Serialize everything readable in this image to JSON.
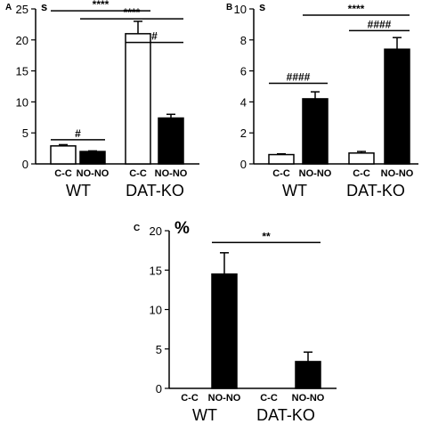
{
  "colors": {
    "control": "#ffffff",
    "treated": "#000000",
    "ink": "#000000"
  },
  "chart_data": [
    {
      "type": "bar",
      "panel_label": "A",
      "ylabel": "s",
      "ylim": [
        0,
        25
      ],
      "yticks": [
        0,
        5,
        10,
        15,
        20,
        25
      ],
      "categories": [
        "C-C",
        "NO-NO",
        "C-C",
        "NO-NO"
      ],
      "groups": [
        "WT",
        "DAT-KO"
      ],
      "values": [
        2.9,
        2.0,
        21.0,
        7.4
      ],
      "errors": [
        0.2,
        0.1,
        2.0,
        0.6
      ],
      "fills": [
        "control",
        "treated",
        "control",
        "treated"
      ],
      "annotations": [
        {
          "from": 0,
          "to": 2,
          "y": 24.7,
          "label": "****"
        },
        {
          "from": 1,
          "to": 3,
          "y": 23.4,
          "label": "****"
        },
        {
          "from": 2,
          "to": 3,
          "y": 19.6,
          "label": "#"
        },
        {
          "from": 0,
          "to": 1,
          "y": 3.9,
          "label": "#"
        }
      ]
    },
    {
      "type": "bar",
      "panel_label": "B",
      "ylabel": "s",
      "ylim": [
        0,
        10
      ],
      "yticks": [
        0,
        2,
        4,
        6,
        8,
        10
      ],
      "categories": [
        "C-C",
        "NO-NO",
        "C-C",
        "NO-NO"
      ],
      "groups": [
        "WT",
        "DAT-KO"
      ],
      "values": [
        0.6,
        4.2,
        0.7,
        7.4
      ],
      "errors": [
        0.05,
        0.45,
        0.1,
        0.75
      ],
      "fills": [
        "control",
        "treated",
        "control",
        "treated"
      ],
      "annotations": [
        {
          "from": 1,
          "to": 3,
          "y": 9.6,
          "label": "****"
        },
        {
          "from": 2,
          "to": 3,
          "y": 8.6,
          "label": "####"
        },
        {
          "from": 0,
          "to": 1,
          "y": 5.2,
          "label": "####"
        }
      ]
    },
    {
      "type": "bar",
      "panel_label": "C",
      "ylabel": "%",
      "ylim": [
        0,
        20
      ],
      "yticks": [
        0,
        5,
        10,
        15,
        20
      ],
      "categories": [
        "C-C",
        "NO-NO",
        "C-C",
        "NO-NO"
      ],
      "groups": [
        "WT",
        "DAT-KO"
      ],
      "values": [
        0,
        14.5,
        0,
        3.4
      ],
      "errors": [
        0,
        2.7,
        0,
        1.2
      ],
      "fills": [
        "control",
        "treated",
        "control",
        "treated"
      ],
      "annotations": [
        {
          "from": 1,
          "to": 3,
          "y": 18.5,
          "label": "**"
        }
      ]
    }
  ]
}
